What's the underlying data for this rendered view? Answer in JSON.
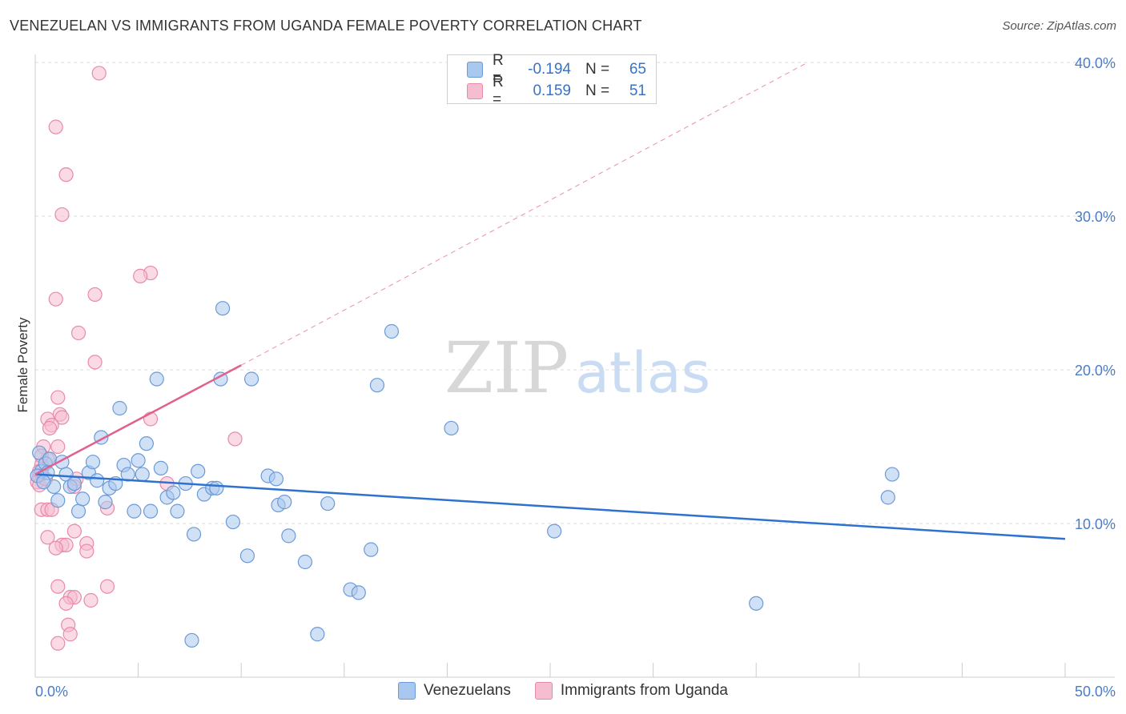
{
  "title": "VENEZUELAN VS IMMIGRANTS FROM UGANDA FEMALE POVERTY CORRELATION CHART",
  "source": "Source: ZipAtlas.com",
  "watermark": {
    "zip": "ZIP",
    "atlas": "atlas"
  },
  "legend": {
    "rows": [
      {
        "r_label": "R =",
        "r_value": "-0.194",
        "n_label": "N =",
        "n_value": "65"
      },
      {
        "r_label": "R =",
        "r_value": "0.159",
        "n_label": "N =",
        "n_value": "51"
      }
    ]
  },
  "bottom_legend": {
    "series1": "Venezuelans",
    "series2": "Immigrants from Uganda"
  },
  "colors": {
    "blue_fill": "#a9c8ef",
    "blue_stroke": "#6b9ad8",
    "blue_line": "#2e72cf",
    "pink_fill": "#f6bcd0",
    "pink_stroke": "#e88aab",
    "pink_line": "#e0608f",
    "tick_text": "#4a7cc7",
    "grid": "#dddddd"
  },
  "chart_data": {
    "type": "scatter",
    "title": "VENEZUELAN VS IMMIGRANTS FROM UGANDA FEMALE POVERTY CORRELATION CHART",
    "xlabel": "",
    "ylabel": "Female Poverty",
    "xlim": [
      0,
      50
    ],
    "ylim": [
      0,
      40
    ],
    "x_tick_labels": [
      "0.0%",
      "50.0%"
    ],
    "y_ticks": [
      10,
      20,
      30,
      40
    ],
    "y_tick_labels": [
      "10.0%",
      "20.0%",
      "30.0%",
      "40.0%"
    ],
    "series": [
      {
        "name": "Venezuelans",
        "r": -0.194,
        "n": 65,
        "trend": {
          "x": [
            0,
            50
          ],
          "y": [
            13.2,
            9.0
          ],
          "style": "solid"
        },
        "points": [
          [
            0.2,
            14.6
          ],
          [
            0.3,
            13.4
          ],
          [
            0.5,
            13.9
          ],
          [
            0.6,
            13.3
          ],
          [
            0.7,
            14.2
          ],
          [
            0.9,
            12.4
          ],
          [
            1.1,
            11.5
          ],
          [
            1.3,
            14.0
          ],
          [
            1.5,
            13.2
          ],
          [
            1.7,
            12.4
          ],
          [
            1.9,
            12.6
          ],
          [
            2.1,
            10.8
          ],
          [
            2.3,
            11.6
          ],
          [
            2.6,
            13.3
          ],
          [
            2.8,
            14.0
          ],
          [
            3.0,
            12.8
          ],
          [
            3.2,
            15.6
          ],
          [
            3.4,
            11.4
          ],
          [
            3.6,
            12.3
          ],
          [
            3.9,
            12.6
          ],
          [
            4.1,
            17.5
          ],
          [
            4.3,
            13.8
          ],
          [
            4.5,
            13.2
          ],
          [
            4.8,
            10.8
          ],
          [
            5.0,
            14.1
          ],
          [
            5.2,
            13.2
          ],
          [
            5.4,
            15.2
          ],
          [
            5.6,
            10.8
          ],
          [
            5.9,
            19.4
          ],
          [
            6.1,
            13.6
          ],
          [
            6.4,
            11.7
          ],
          [
            6.7,
            12.0
          ],
          [
            6.9,
            10.8
          ],
          [
            7.3,
            12.6
          ],
          [
            7.6,
            2.4
          ],
          [
            7.7,
            9.3
          ],
          [
            7.9,
            13.4
          ],
          [
            8.2,
            11.9
          ],
          [
            8.6,
            12.3
          ],
          [
            8.8,
            12.3
          ],
          [
            9.0,
            19.4
          ],
          [
            9.1,
            24.0
          ],
          [
            9.6,
            10.1
          ],
          [
            10.3,
            7.9
          ],
          [
            10.5,
            19.4
          ],
          [
            11.3,
            13.1
          ],
          [
            11.7,
            12.9
          ],
          [
            11.8,
            11.2
          ],
          [
            12.1,
            11.4
          ],
          [
            12.3,
            9.2
          ],
          [
            13.1,
            7.5
          ],
          [
            13.7,
            2.8
          ],
          [
            14.2,
            11.3
          ],
          [
            15.3,
            5.7
          ],
          [
            15.7,
            5.5
          ],
          [
            16.3,
            8.3
          ],
          [
            16.6,
            19.0
          ],
          [
            17.3,
            22.5
          ],
          [
            20.2,
            16.2
          ],
          [
            25.2,
            9.5
          ],
          [
            35.0,
            4.8
          ],
          [
            41.4,
            11.7
          ],
          [
            41.6,
            13.2
          ],
          [
            0.1,
            13.1
          ],
          [
            0.4,
            12.7
          ]
        ]
      },
      {
        "name": "Immigrants from Uganda",
        "r": 0.159,
        "n": 51,
        "trend": {
          "x": [
            0,
            10
          ],
          "y": [
            13.2,
            20.3
          ],
          "style": "solid",
          "dashed_extension": {
            "x": [
              10,
              37.5
            ],
            "y": [
              20.3,
              40
            ]
          }
        },
        "points": [
          [
            3.1,
            39.3
          ],
          [
            1.0,
            35.8
          ],
          [
            1.5,
            32.7
          ],
          [
            1.3,
            30.1
          ],
          [
            5.6,
            26.3
          ],
          [
            5.1,
            26.1
          ],
          [
            2.9,
            24.9
          ],
          [
            1.0,
            24.6
          ],
          [
            2.1,
            22.4
          ],
          [
            2.9,
            20.5
          ],
          [
            1.1,
            18.2
          ],
          [
            1.2,
            17.1
          ],
          [
            0.6,
            16.8
          ],
          [
            1.3,
            16.9
          ],
          [
            0.8,
            16.4
          ],
          [
            0.7,
            16.2
          ],
          [
            5.6,
            16.8
          ],
          [
            9.7,
            15.5
          ],
          [
            0.4,
            15.0
          ],
          [
            1.1,
            15.0
          ],
          [
            0.6,
            14.2
          ],
          [
            0.3,
            13.8
          ],
          [
            0.2,
            13.1
          ],
          [
            0.1,
            12.7
          ],
          [
            0.2,
            12.5
          ],
          [
            2.0,
            12.9
          ],
          [
            1.9,
            12.4
          ],
          [
            6.4,
            12.6
          ],
          [
            0.3,
            10.9
          ],
          [
            0.6,
            10.9
          ],
          [
            0.8,
            10.9
          ],
          [
            3.5,
            11.0
          ],
          [
            0.6,
            9.1
          ],
          [
            1.9,
            9.5
          ],
          [
            1.3,
            8.6
          ],
          [
            1.5,
            8.6
          ],
          [
            1.0,
            8.4
          ],
          [
            2.5,
            8.7
          ],
          [
            2.5,
            8.2
          ],
          [
            1.1,
            5.9
          ],
          [
            3.5,
            5.9
          ],
          [
            1.7,
            5.2
          ],
          [
            1.9,
            5.2
          ],
          [
            1.5,
            4.8
          ],
          [
            2.7,
            5.0
          ],
          [
            1.6,
            3.4
          ],
          [
            1.7,
            2.8
          ],
          [
            1.1,
            2.2
          ],
          [
            0.2,
            13.4
          ],
          [
            0.5,
            12.9
          ],
          [
            0.3,
            14.4
          ]
        ]
      }
    ]
  }
}
